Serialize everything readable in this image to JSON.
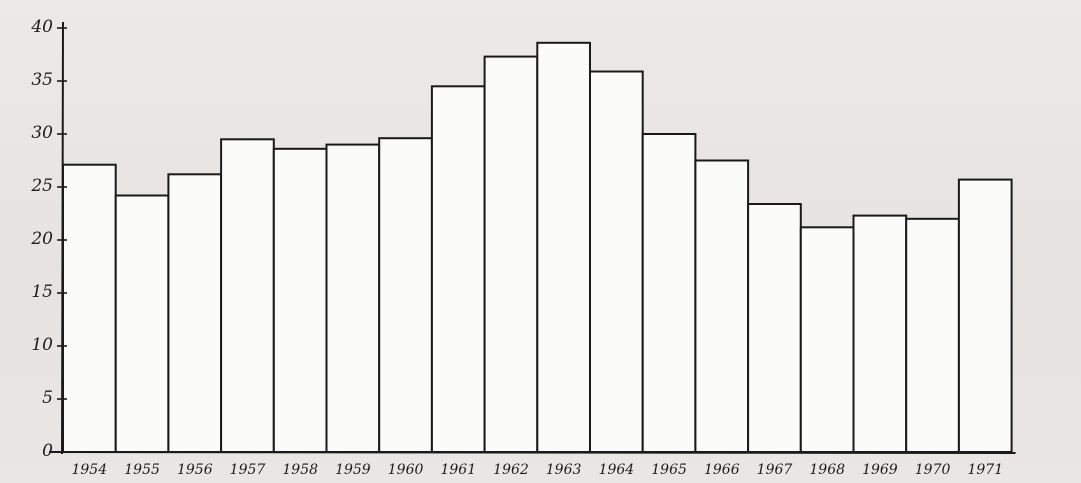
{
  "chart_data": {
    "type": "bar",
    "title": "",
    "xlabel": "",
    "ylabel": "",
    "categories": [
      "1954",
      "1955",
      "1956",
      "1957",
      "1958",
      "1959",
      "1960",
      "1961",
      "1962",
      "1963",
      "1964",
      "1965",
      "1966",
      "1967",
      "1968",
      "1969",
      "1970",
      "1971"
    ],
    "values": [
      27.1,
      24.2,
      26.2,
      29.5,
      28.6,
      29.0,
      29.6,
      34.5,
      37.3,
      38.6,
      35.9,
      30.0,
      27.5,
      23.4,
      21.2,
      22.3,
      22.0,
      25.7
    ],
    "ylim": [
      0,
      40
    ],
    "yticks": [
      "0",
      "5",
      "10",
      "15",
      "20",
      "25",
      "30",
      "35",
      "40"
    ],
    "grid": false,
    "colors": {
      "bar_fill": "#fbfbfa",
      "bar_edge": "#1a1a1a",
      "paper": "#e9e6e4"
    }
  }
}
